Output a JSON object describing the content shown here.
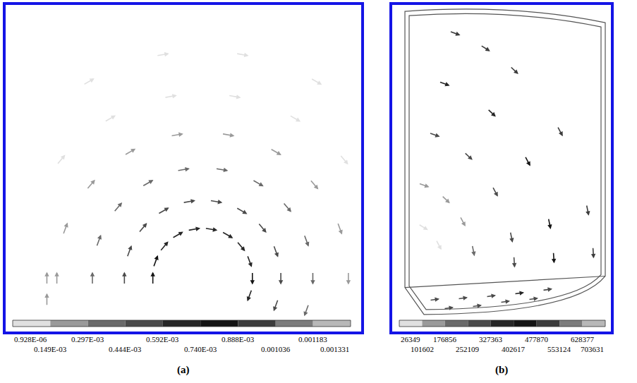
{
  "chart_data": [
    {
      "type": "vector",
      "label": "(a)",
      "xlim": [
        0,
        500
      ],
      "ylim": [
        0,
        460
      ],
      "tick_labels": false,
      "colorbar": {
        "ticks": [
          {
            "value": 9.28e-07,
            "label": "0.928E-06"
          },
          {
            "value": 0.000149,
            "label": "0.149E-03"
          },
          {
            "value": 0.000297,
            "label": "0.297E-03"
          },
          {
            "value": 0.000444,
            "label": "0.444E-03"
          },
          {
            "value": 0.000592,
            "label": "0.592E-03"
          },
          {
            "value": 0.00074,
            "label": "0.740E-03"
          },
          {
            "value": 0.000888,
            "label": "0.888E-03"
          },
          {
            "value": 0.001036,
            "label": "0.001036"
          },
          {
            "value": 0.001183,
            "label": "0.001183"
          },
          {
            "value": 0.001331,
            "label": "0.001331"
          }
        ],
        "colors": [
          "#e0e0e0",
          "#9a9a9a",
          "#6a6a6a",
          "#4a4a4a",
          "#262626",
          "#141414",
          "#3c3c3c",
          "#7c7c7c",
          "#b8b8b8"
        ]
      },
      "arrows": [
        [
          343,
          51,
          -6.2,
          -16.9,
          0.00072
        ],
        [
          347,
          75,
          0,
          -18,
          0.00078
        ],
        [
          343,
          99,
          6.2,
          -16.9,
          0.00074
        ],
        [
          331,
          120,
          11.6,
          -13.8,
          0.0007
        ],
        [
          312,
          136,
          15.6,
          -9,
          0.00068
        ],
        [
          289,
          144,
          17.7,
          -3.1,
          0.00066
        ],
        [
          265,
          144,
          17.7,
          3.1,
          0.00066
        ],
        [
          242,
          136,
          15.6,
          9,
          0.00069
        ],
        [
          223,
          120,
          11.6,
          13.8,
          0.00071
        ],
        [
          211,
          99,
          6.2,
          16.9,
          0.00075
        ],
        [
          207,
          75,
          0,
          18,
          0.00079
        ],
        [
          380,
          37,
          -6.2,
          -16.9,
          0.0005
        ],
        [
          387,
          75,
          0,
          -18,
          0.00053
        ],
        [
          380,
          113,
          6.2,
          -16.9,
          0.00051
        ],
        [
          361,
          146,
          11.6,
          -13.8,
          0.00048
        ],
        [
          332,
          170,
          15.6,
          -9,
          0.00046
        ],
        [
          296,
          183,
          17.7,
          -3.1,
          0.00045
        ],
        [
          258,
          183,
          17.7,
          3.1,
          0.00045
        ],
        [
          222,
          170,
          15.6,
          9,
          0.00047
        ],
        [
          193,
          146,
          11.6,
          13.8,
          0.00049
        ],
        [
          174,
          113,
          6.2,
          16.9,
          0.00052
        ],
        [
          167,
          75,
          0,
          18,
          0.00054
        ],
        [
          423,
          30,
          -6.2,
          -16.9,
          0.00034
        ],
        [
          432,
          75,
          0,
          -18,
          0.00036
        ],
        [
          423,
          128,
          6.2,
          -16.9,
          0.00035
        ],
        [
          396,
          175,
          11.6,
          -13.8,
          0.00033
        ],
        [
          355,
          209,
          15.6,
          -9,
          0.00031
        ],
        [
          304,
          228,
          17.7,
          -3.1,
          0.0003
        ],
        [
          250,
          228,
          17.7,
          3.1,
          0.0003
        ],
        [
          200,
          209,
          15.6,
          9,
          0.00032
        ],
        [
          158,
          175,
          11.6,
          13.8,
          0.00034
        ],
        [
          131,
          128,
          6.2,
          16.9,
          0.00036
        ],
        [
          122,
          75,
          0,
          18,
          0.00038
        ],
        [
          482,
          75,
          0,
          -18,
          0.0002
        ],
        [
          470,
          145,
          6.2,
          -16.9,
          0.00019
        ],
        [
          434,
          207,
          11.6,
          -13.8,
          0.00018
        ],
        [
          380,
          253,
          15.6,
          -9,
          0.00017
        ],
        [
          313,
          277,
          17.7,
          -3.1,
          0.00016
        ],
        [
          241,
          277,
          17.7,
          3.1,
          0.00016
        ],
        [
          175,
          253,
          15.6,
          9,
          0.00018
        ],
        [
          120,
          207,
          11.6,
          13.8,
          0.0002
        ],
        [
          84,
          145,
          6.2,
          16.9,
          0.00022
        ],
        [
          72,
          75,
          0,
          18,
          0.00024
        ],
        [
          476,
          242,
          11.6,
          -13.8,
          0.0001
        ],
        [
          407,
          300,
          15.6,
          -9,
          9e-05
        ],
        [
          322,
          331,
          17.7,
          -3.1,
          8e-05
        ],
        [
          232,
          331,
          17.7,
          3.1,
          8e-05
        ],
        [
          147,
          300,
          15.6,
          9,
          0.0001
        ],
        [
          78,
          242,
          11.6,
          13.8,
          0.00013
        ],
        [
          437,
          352,
          15.6,
          -9,
          5e-05
        ],
        [
          333,
          390,
          17.7,
          -3.1,
          4e-05
        ],
        [
          221,
          390,
          17.7,
          3.1,
          4e-05
        ],
        [
          117,
          352,
          15.6,
          9,
          5e-05
        ],
        [
          58,
          45,
          0,
          18,
          0.00028
        ],
        [
          58,
          75,
          0,
          18,
          0.00026
        ]
      ]
    },
    {
      "type": "vector",
      "label": "(b)",
      "xlim": [
        0,
        310
      ],
      "ylim": [
        0,
        460
      ],
      "tick_labels": false,
      "colorbar": {
        "ticks": [
          26349,
          101602,
          176856,
          252109,
          327363,
          402617,
          477870,
          553124,
          628377,
          703631
        ],
        "colors": [
          "#e0e0e0",
          "#9a9a9a",
          "#6a6a6a",
          "#4a4a4a",
          "#262626",
          "#141414",
          "#3c3c3c",
          "#7c7c7c",
          "#b8b8b8"
        ]
      },
      "arrows": [
        [
          285,
          111,
          1.0,
          -16,
          520000
        ],
        [
          277,
          171,
          3.2,
          -15.7,
          530000
        ],
        [
          238,
          282,
          7.5,
          -14.1,
          510000
        ],
        [
          173,
          368,
          11.7,
          -10.9,
          495000
        ],
        [
          132,
          399,
          13.6,
          -8.4,
          500000
        ],
        [
          89,
          420,
          15.1,
          -5.3,
          485000
        ],
        [
          229,
          104,
          1.0,
          -16,
          420000
        ],
        [
          223,
          152,
          3.2,
          -15.7,
          440000
        ],
        [
          192,
          240,
          7.5,
          -14.1,
          430000
        ],
        [
          141,
          308,
          11.7,
          -10.9,
          400000
        ],
        [
          74,
          349,
          15.1,
          -5.3,
          380000
        ],
        [
          173,
          98,
          1.0,
          -16,
          300000
        ],
        [
          169,
          133,
          3.2,
          -15.7,
          290000
        ],
        [
          146,
          197,
          7.5,
          -14.1,
          280000
        ],
        [
          108,
          247,
          11.7,
          -10.9,
          270000
        ],
        [
          60,
          277,
          15.1,
          -5.3,
          260000
        ],
        [
          115,
          114,
          3.2,
          -15.7,
          190000
        ],
        [
          100,
          155,
          7.5,
          -14.1,
          170000
        ],
        [
          76,
          186,
          11.7,
          -10.9,
          150000
        ],
        [
          45,
          206,
          15.1,
          -5.3,
          130000
        ],
        [
          66,
          122,
          7.5,
          -14.1,
          70000
        ],
        [
          44,
          147,
          13.6,
          -8.4,
          50000
        ],
        [
          60,
          45,
          14,
          2,
          300000
        ],
        [
          100,
          47,
          14,
          2,
          310000
        ],
        [
          140,
          50,
          14,
          2,
          320000
        ],
        [
          180,
          54,
          14,
          2,
          330000
        ],
        [
          220,
          59,
          14,
          2,
          320000
        ],
        [
          80,
          33,
          14,
          2,
          290000
        ],
        [
          120,
          36,
          14,
          2,
          300000
        ],
        [
          160,
          42,
          14,
          2,
          310000
        ],
        [
          200,
          46,
          14,
          2,
          300000
        ]
      ]
    }
  ]
}
